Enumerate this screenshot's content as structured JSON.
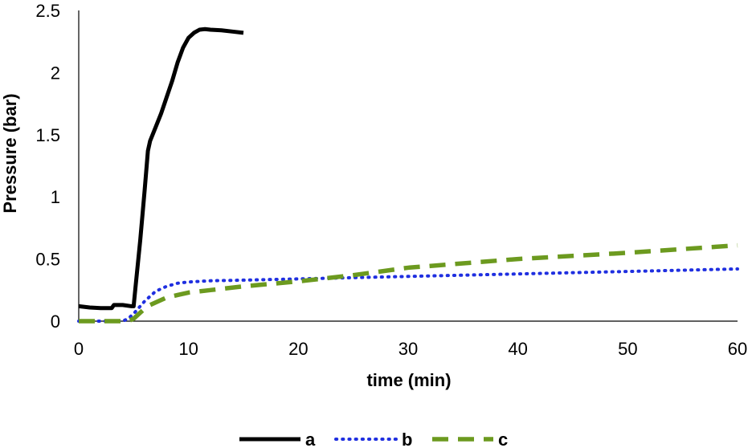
{
  "chart_data": {
    "type": "line",
    "title": "",
    "xlabel": "time (min)",
    "ylabel": "Pressure (bar)",
    "xlim": [
      0,
      60
    ],
    "ylim": [
      0,
      2.5
    ],
    "x_ticks": [
      0,
      10,
      20,
      30,
      40,
      50,
      60
    ],
    "x_tick_labels": [
      "0",
      "10",
      "20",
      "30",
      "40",
      "50",
      "60"
    ],
    "y_ticks": [
      0,
      0.5,
      1,
      1.5,
      2,
      2.5
    ],
    "y_tick_labels": [
      "0",
      "0.5",
      "1",
      "1.5",
      "2",
      "2.5"
    ],
    "grid": false,
    "legend_position": "bottom",
    "series": [
      {
        "name": "a",
        "color": "#000000",
        "style": "solid",
        "x": [
          0,
          1,
          2,
          3,
          3.2,
          4,
          4.8,
          5,
          5.2,
          5.6,
          6,
          6.3,
          6.5,
          7,
          7.5,
          8,
          8.5,
          9,
          9.5,
          10,
          10.5,
          11,
          11.5,
          12,
          13,
          14,
          15
        ],
        "y": [
          0.12,
          0.11,
          0.105,
          0.105,
          0.13,
          0.13,
          0.12,
          0.12,
          0.3,
          0.65,
          1.05,
          1.37,
          1.45,
          1.56,
          1.67,
          1.8,
          1.93,
          2.08,
          2.2,
          2.28,
          2.32,
          2.345,
          2.35,
          2.345,
          2.34,
          2.33,
          2.32
        ]
      },
      {
        "name": "b",
        "color": "#1f2fe0",
        "style": "dotted",
        "x": [
          0,
          2,
          4,
          4.5,
          5,
          5.5,
          6,
          6.5,
          7,
          8,
          9,
          10,
          12,
          15,
          20,
          25,
          30,
          40,
          50,
          60
        ],
        "y": [
          0,
          0,
          0,
          0.02,
          0.06,
          0.11,
          0.16,
          0.2,
          0.24,
          0.28,
          0.305,
          0.315,
          0.325,
          0.33,
          0.34,
          0.35,
          0.36,
          0.38,
          0.4,
          0.42
        ]
      },
      {
        "name": "c",
        "color": "#6c9a1f",
        "style": "dashed",
        "x": [
          0,
          2,
          4,
          4.5,
          5,
          5.5,
          6,
          6.5,
          7,
          8,
          9,
          10,
          12,
          15,
          20,
          25,
          30,
          40,
          50,
          60
        ],
        "y": [
          0,
          0,
          0,
          0,
          0.02,
          0.06,
          0.1,
          0.13,
          0.15,
          0.19,
          0.21,
          0.23,
          0.25,
          0.28,
          0.32,
          0.37,
          0.43,
          0.5,
          0.55,
          0.61
        ]
      }
    ]
  }
}
